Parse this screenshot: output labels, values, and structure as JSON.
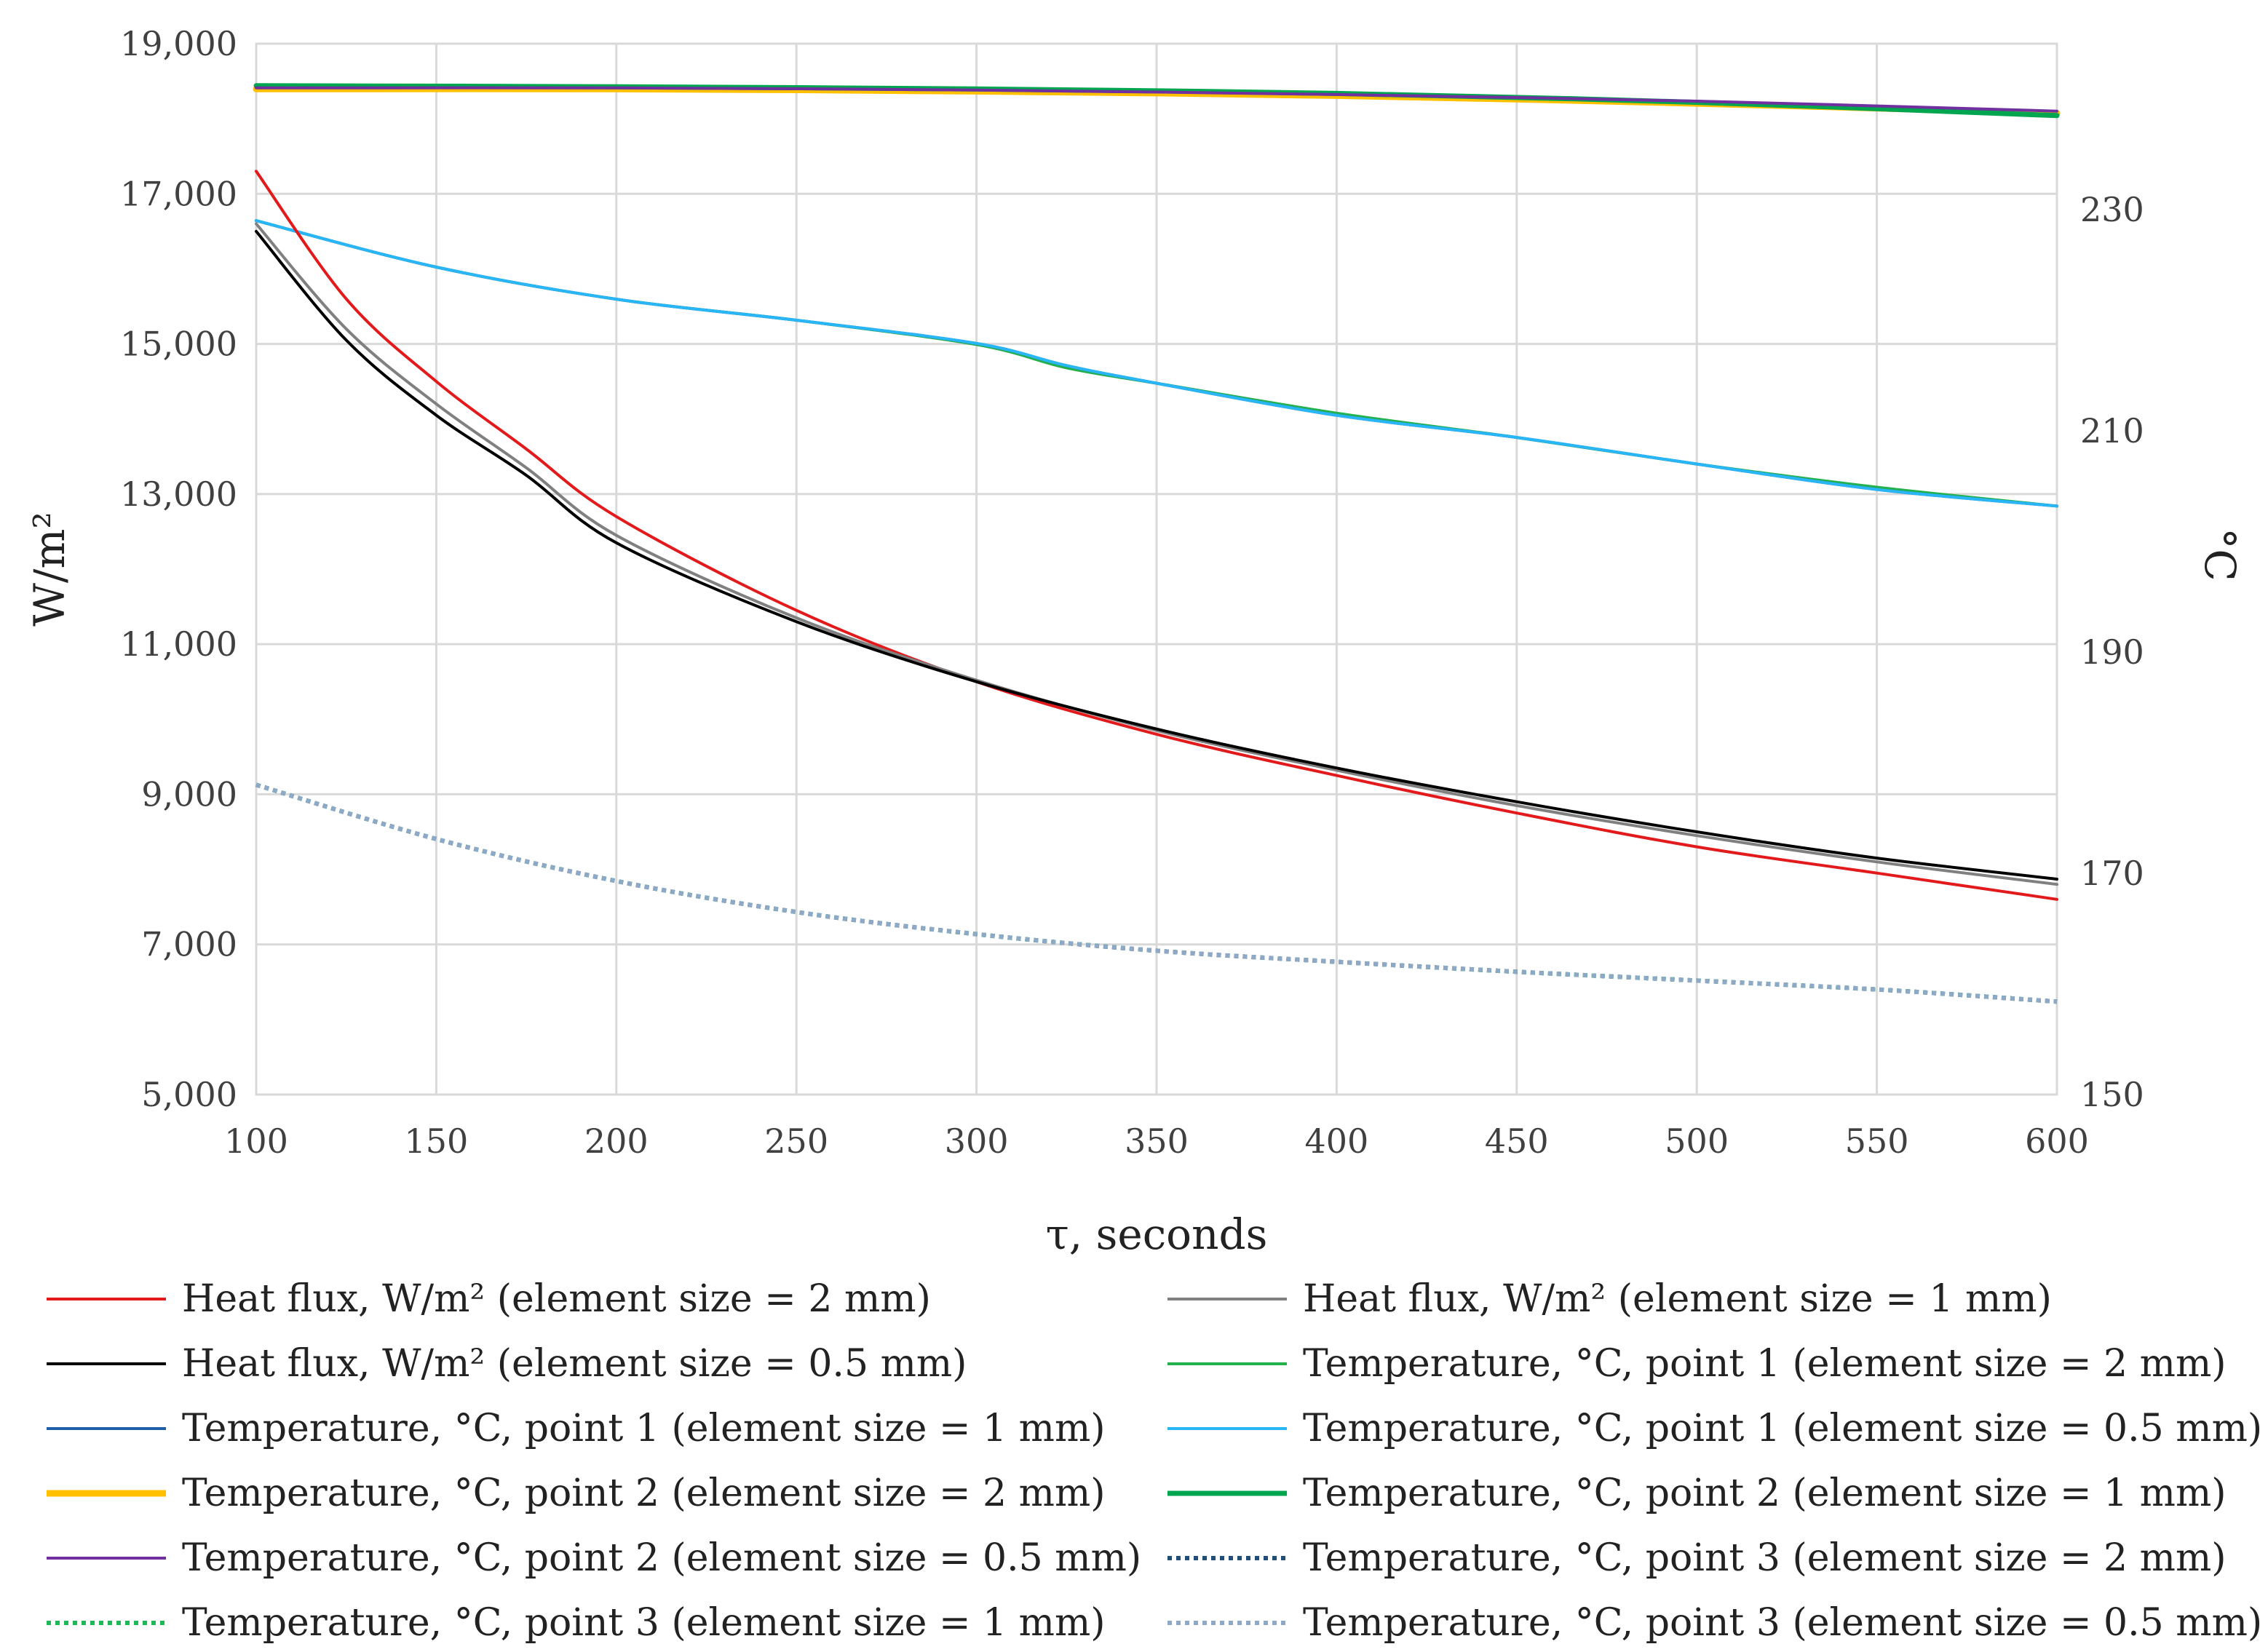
{
  "chart_data": {
    "type": "line",
    "title": "",
    "xlabel": "τ, seconds",
    "ylabel": "W/m²",
    "y2label": "°C",
    "xlim": [
      100,
      600
    ],
    "ylim": [
      5000,
      19000
    ],
    "y2lim": [
      150,
      245
    ],
    "x_ticks": [
      100,
      150,
      200,
      250,
      300,
      350,
      400,
      450,
      500,
      550,
      600
    ],
    "x_tick_labels": [
      "100",
      "150",
      "200",
      "250",
      "300",
      "350",
      "400",
      "450",
      "500",
      "550",
      "600"
    ],
    "y_ticks": [
      5000,
      7000,
      9000,
      11000,
      13000,
      15000,
      17000,
      19000
    ],
    "y_tick_labels": [
      "5,000",
      "7,000",
      "9,000",
      "11,000",
      "13,000",
      "15,000",
      "17,000",
      "19,000"
    ],
    "y2_ticks": [
      150,
      170,
      190,
      210,
      230
    ],
    "y2_tick_labels": [
      "150",
      "170",
      "190",
      "210",
      "230"
    ],
    "grid": true,
    "legend_position": "bottom",
    "series": [
      {
        "name": "Heat flux, W/m² (element size = 2 mm)",
        "axis": "left",
        "color": "#e31a1c",
        "dash": "solid",
        "width": 4,
        "x": [
          100,
          125,
          150,
          175,
          200,
          250,
          300,
          350,
          400,
          450,
          500,
          550,
          600
        ],
        "y": [
          17300,
          15600,
          14500,
          13600,
          12700,
          11450,
          10500,
          9800,
          9250,
          8750,
          8300,
          7950,
          7600
        ]
      },
      {
        "name": "Heat flux, W/m² (element size = 1 mm)",
        "axis": "left",
        "color": "#808080",
        "dash": "solid",
        "width": 4,
        "x": [
          100,
          125,
          150,
          175,
          200,
          250,
          300,
          350,
          400,
          450,
          500,
          550,
          600
        ],
        "y": [
          16600,
          15200,
          14200,
          13350,
          12450,
          11350,
          10520,
          9850,
          9320,
          8850,
          8450,
          8100,
          7800
        ]
      },
      {
        "name": "Heat flux, W/m² (element size = 0.5 mm)",
        "axis": "left",
        "color": "#000000",
        "dash": "solid",
        "width": 4,
        "x": [
          100,
          125,
          150,
          175,
          200,
          250,
          300,
          350,
          400,
          450,
          500,
          550,
          600
        ],
        "y": [
          16500,
          15050,
          14050,
          13250,
          12350,
          11300,
          10500,
          9870,
          9350,
          8900,
          8500,
          8150,
          7870
        ]
      },
      {
        "name": "Temperature, °C, point 1 (element size = 2 mm)",
        "axis": "right",
        "color": "#22b14c",
        "dash": "solid",
        "width": 4,
        "x": [
          100,
          150,
          200,
          250,
          300,
          325,
          350,
          400,
          450,
          500,
          550,
          600
        ],
        "y": [
          229.0,
          224.8,
          221.9,
          220.0,
          217.8,
          215.7,
          214.3,
          211.6,
          209.4,
          207.0,
          204.9,
          203.2
        ]
      },
      {
        "name": "Temperature, °C, point 1 (element size = 1 mm)",
        "axis": "right",
        "color": "#1f5fa8",
        "dash": "solid",
        "width": 4,
        "x": [
          100,
          150,
          200,
          250,
          300,
          325,
          350,
          400,
          450,
          500,
          550,
          600
        ],
        "y": [
          229.0,
          224.8,
          221.9,
          220.0,
          217.9,
          215.9,
          214.3,
          211.4,
          209.4,
          207.0,
          204.7,
          203.2
        ]
      },
      {
        "name": "Temperature, °C, point 1 (element size = 0.5 mm)",
        "axis": "right",
        "color": "#29b6f6",
        "dash": "solid",
        "width": 4,
        "x": [
          100,
          150,
          200,
          250,
          300,
          325,
          350,
          400,
          450,
          500,
          550,
          600
        ],
        "y": [
          229.0,
          224.8,
          221.9,
          220.0,
          217.9,
          215.9,
          214.3,
          211.4,
          209.4,
          207.0,
          204.7,
          203.2
        ]
      },
      {
        "name": "Temperature, °C, point 2 (element size = 2 mm)",
        "axis": "right",
        "color": "#ffc000",
        "dash": "solid",
        "width": 9,
        "x": [
          100,
          200,
          300,
          400,
          500,
          600
        ],
        "y": [
          240.9,
          240.9,
          240.7,
          240.3,
          239.6,
          238.7
        ]
      },
      {
        "name": "Temperature, °C, point 2 (element size = 1 mm)",
        "axis": "right",
        "color": "#00a550",
        "dash": "solid",
        "width": 7,
        "x": [
          100,
          200,
          300,
          400,
          500,
          600
        ],
        "y": [
          241.2,
          241.1,
          240.9,
          240.5,
          239.7,
          238.5
        ]
      },
      {
        "name": "Temperature, °C, point 2 (element size = 0.5 mm)",
        "axis": "right",
        "color": "#7030a0",
        "dash": "solid",
        "width": 4,
        "x": [
          100,
          200,
          300,
          400,
          500,
          600
        ],
        "y": [
          241.0,
          241.0,
          240.8,
          240.4,
          239.8,
          238.9
        ]
      },
      {
        "name": "Temperature, °C, point 3 (element size = 2 mm)",
        "axis": "right",
        "color": "#1f4e79",
        "dash": "dotted",
        "width": 6,
        "x": [
          100,
          150,
          200,
          250,
          300,
          350,
          400,
          450,
          500,
          550,
          600
        ],
        "y": [
          178.0,
          173.1,
          169.3,
          166.5,
          164.5,
          163.0,
          162.0,
          161.1,
          160.3,
          159.5,
          158.4
        ]
      },
      {
        "name": "Temperature, °C, point 3 (element size = 1 mm)",
        "axis": "right",
        "color": "#1db954",
        "dash": "dotted",
        "width": 6,
        "x": [
          100,
          150,
          200,
          250,
          300,
          350,
          400,
          450,
          500,
          550,
          600
        ],
        "y": [
          178.0,
          173.1,
          169.3,
          166.5,
          164.5,
          163.0,
          162.0,
          161.1,
          160.3,
          159.5,
          158.4
        ]
      },
      {
        "name": "Temperature, °C, point 3 (element size = 0.5 mm)",
        "axis": "right",
        "color": "#8fa8c8",
        "dash": "dotted",
        "width": 6,
        "x": [
          100,
          150,
          200,
          250,
          300,
          350,
          400,
          450,
          500,
          550,
          600
        ],
        "y": [
          178.0,
          173.1,
          169.3,
          166.5,
          164.5,
          163.0,
          162.0,
          161.1,
          160.3,
          159.5,
          158.4
        ]
      }
    ]
  }
}
